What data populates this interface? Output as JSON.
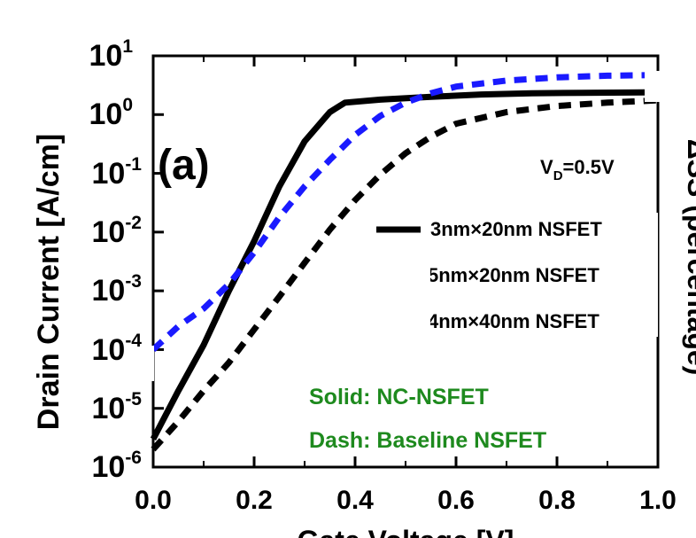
{
  "chart_data": {
    "type": "line",
    "panel_label": "(a)",
    "xlabel": "Gate Voltage [V]",
    "ylabel": "Drain Current [A/cm]",
    "ylabel_right": "ΔSS (percentage)",
    "y_scale": "log",
    "xlim": [
      0.0,
      1.0
    ],
    "ylim": [
      1e-06,
      10
    ],
    "x_ticks": [
      "0.0",
      "0.2",
      "0.4",
      "0.6",
      "0.8",
      "1.0"
    ],
    "y_ticks": [
      {
        "base": "10",
        "exp": "1"
      },
      {
        "base": "10",
        "exp": "0"
      },
      {
        "base": "10",
        "exp": "-1"
      },
      {
        "base": "10",
        "exp": "-2"
      },
      {
        "base": "10",
        "exp": "-3"
      },
      {
        "base": "10",
        "exp": "-4"
      },
      {
        "base": "10",
        "exp": "-5"
      },
      {
        "base": "10",
        "exp": "-6"
      }
    ],
    "condition": {
      "main": "V",
      "sub": "D",
      "rest": "=0.5V"
    },
    "legend": [
      {
        "label": "3nm×20nm NSFET",
        "color": "#000000",
        "style": "solid"
      },
      {
        "label": "5nm×20nm NSFET",
        "color": "#000000",
        "style": "none"
      },
      {
        "label": "4nm×40nm NSFET",
        "color": "#000000",
        "style": "none"
      }
    ],
    "notes": [
      {
        "text": "Solid:  NC-NSFET",
        "color": "#1e8a1e"
      },
      {
        "text": "Dash:  Baseline NSFET",
        "color": "#1e8a1e"
      }
    ],
    "series": [
      {
        "style": "solid",
        "color": "#000000",
        "x": [
          0.0,
          0.05,
          0.1,
          0.15,
          0.2,
          0.25,
          0.3,
          0.35,
          0.38,
          0.45,
          0.55,
          0.65,
          0.75,
          0.85,
          1.0
        ],
        "y": [
          3e-06,
          2e-05,
          0.00012,
          0.001,
          0.007,
          0.06,
          0.35,
          1.1,
          1.6,
          1.8,
          2.0,
          2.2,
          2.3,
          2.35,
          2.4
        ]
      },
      {
        "style": "dash",
        "color": "#1a1aff",
        "x": [
          0.0,
          0.05,
          0.1,
          0.15,
          0.2,
          0.25,
          0.3,
          0.35,
          0.4,
          0.45,
          0.5,
          0.55,
          0.6,
          0.7,
          0.8,
          0.9,
          1.0
        ],
        "y": [
          0.0001,
          0.00025,
          0.0005,
          0.0013,
          0.0045,
          0.018,
          0.06,
          0.17,
          0.45,
          0.95,
          1.6,
          2.3,
          3.0,
          3.8,
          4.3,
          4.6,
          4.7
        ]
      },
      {
        "style": "dash",
        "color": "#000000",
        "x": [
          0.0,
          0.05,
          0.1,
          0.15,
          0.2,
          0.25,
          0.3,
          0.35,
          0.4,
          0.45,
          0.5,
          0.55,
          0.6,
          0.7,
          0.8,
          0.9,
          1.0
        ],
        "y": [
          2e-06,
          6e-06,
          2e-05,
          6e-05,
          0.00022,
          0.0008,
          0.003,
          0.011,
          0.035,
          0.095,
          0.22,
          0.42,
          0.7,
          1.1,
          1.4,
          1.6,
          1.75
        ]
      }
    ]
  }
}
